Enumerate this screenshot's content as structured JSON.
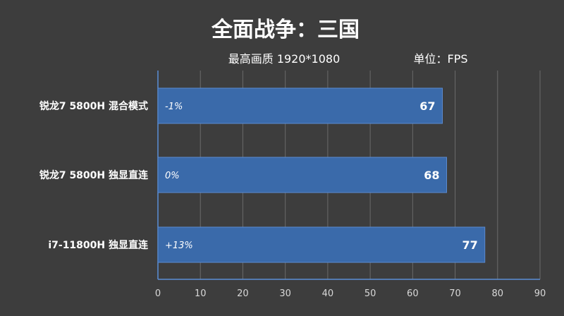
{
  "chart_data": {
    "type": "bar",
    "orientation": "horizontal",
    "title": "全面战争：三国",
    "subtitle_left": "最高画质 1920*1080",
    "subtitle_right": "单位：FPS",
    "categories": [
      "锐龙7 5800H 混合模式",
      "锐龙7 5800H 独显直连",
      "i7-11800H 独显直连"
    ],
    "values": [
      67,
      68,
      77
    ],
    "annotations": [
      "-1%",
      "0%",
      "+13%"
    ],
    "xlim": [
      0,
      90
    ],
    "xticks": [
      0,
      10,
      20,
      30,
      40,
      50,
      60,
      70,
      80,
      90
    ],
    "grid": true,
    "legend": "none"
  },
  "colors": {
    "background": "#3d3d3d",
    "bar": "#3a6aaa",
    "bar_edge": "#5a8ad0",
    "axis": "#5b8fd6",
    "grid": "#6a6a6a"
  }
}
